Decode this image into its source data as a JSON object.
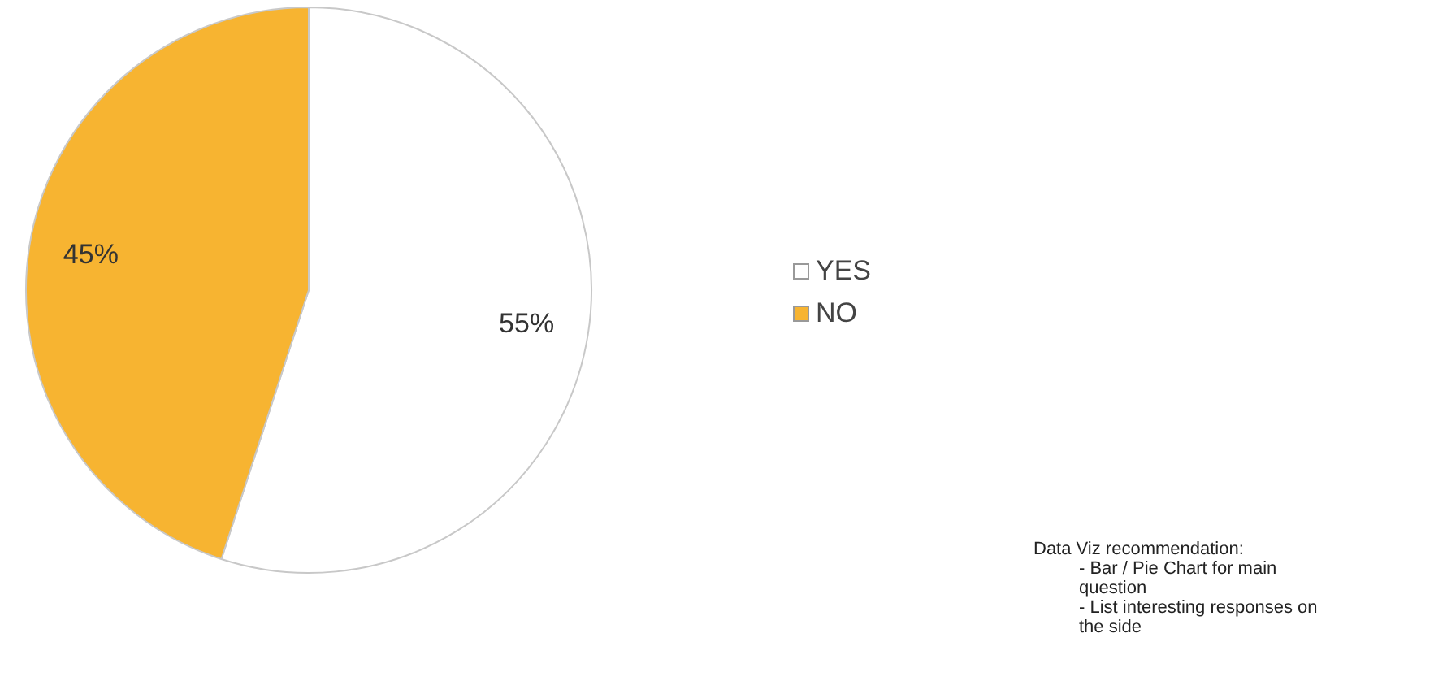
{
  "chart_data": {
    "type": "pie",
    "categories": [
      "YES",
      "NO"
    ],
    "values": [
      55,
      45
    ],
    "colors": [
      "#ffffff",
      "#f7b431"
    ],
    "value_labels": [
      "55%",
      "45%"
    ],
    "legend": "right",
    "annotations": [
      "Data Viz recommendation:",
      "- Bar / Pie Chart for main question",
      "- List interesting responses on the side"
    ]
  }
}
